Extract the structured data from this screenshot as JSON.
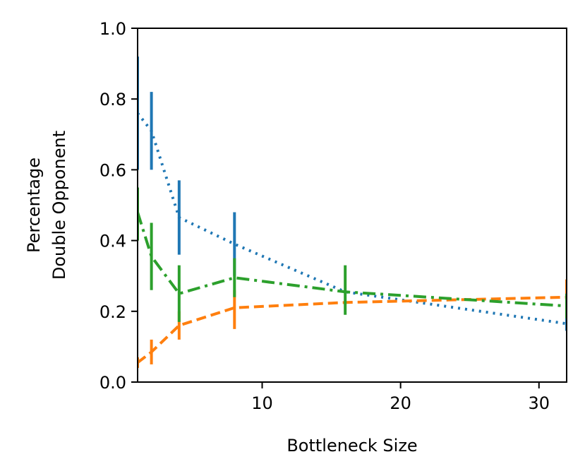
{
  "chart_data": {
    "type": "line",
    "title": "",
    "xlabel": "Bottleneck Size",
    "ylabel": [
      "Percentage",
      "Double Opponent"
    ],
    "xlim": [
      1,
      32
    ],
    "ylim": [
      0.0,
      1.0
    ],
    "xticks": [
      10,
      20,
      30
    ],
    "yticks": [
      0.0,
      0.2,
      0.4,
      0.6,
      0.8,
      1.0
    ],
    "xtick_labels": [
      "10",
      "20",
      "30"
    ],
    "ytick_labels": [
      "0.0",
      "0.2",
      "0.4",
      "0.6",
      "0.8",
      "1.0"
    ],
    "grid": false,
    "legend": "none",
    "x": [
      1,
      2,
      4,
      8,
      16,
      32
    ],
    "series": [
      {
        "style": "dotted",
        "color": "#1f77b4",
        "values": [
          0.76,
          0.71,
          0.465,
          0.39,
          0.255,
          0.165
        ],
        "err_low": [
          0.6,
          0.6,
          0.36,
          0.3,
          0.255,
          0.145
        ],
        "err_high": [
          0.92,
          0.82,
          0.57,
          0.48,
          0.255,
          0.185
        ]
      },
      {
        "style": "dashed",
        "color": "#ff7f0e",
        "values": [
          0.055,
          0.085,
          0.16,
          0.21,
          0.225,
          0.24
        ],
        "err_low": [
          0.04,
          0.05,
          0.12,
          0.15,
          0.225,
          0.2
        ],
        "err_high": [
          0.07,
          0.12,
          0.2,
          0.26,
          0.225,
          0.29
        ]
      },
      {
        "style": "dashdot",
        "color": "#2ca02c",
        "values": [
          0.48,
          0.355,
          0.25,
          0.295,
          0.255,
          0.215
        ],
        "err_low": [
          0.4,
          0.26,
          0.17,
          0.24,
          0.19,
          0.18
        ],
        "err_high": [
          0.55,
          0.45,
          0.33,
          0.35,
          0.33,
          0.25
        ]
      }
    ]
  }
}
